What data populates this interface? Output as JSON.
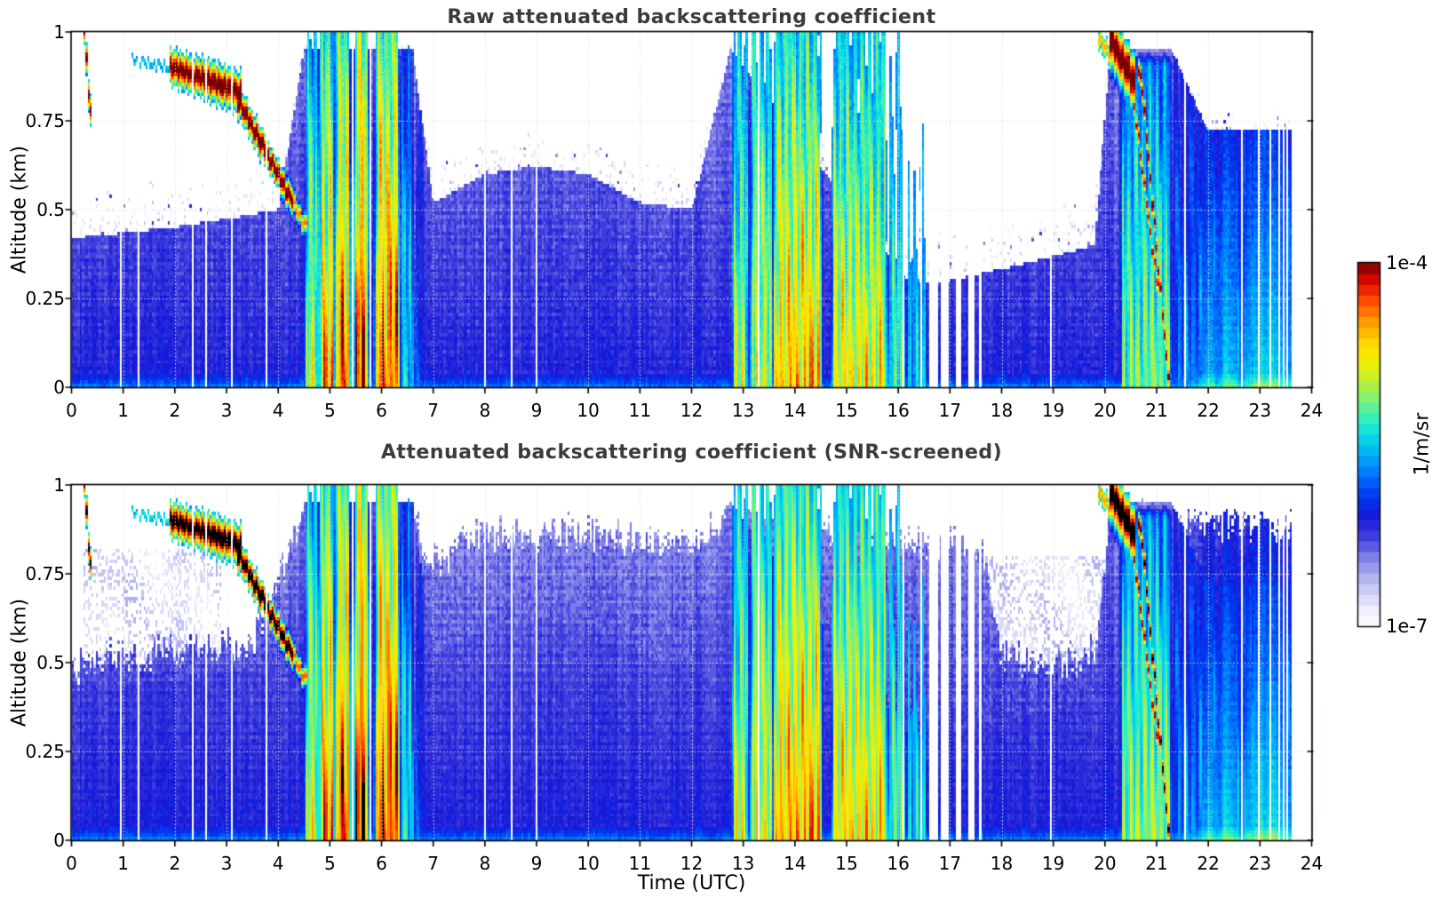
{
  "chart_data": {
    "type": "heatmap",
    "panels": [
      {
        "id": "raw",
        "title": "Raw attenuated backscattering coefficient",
        "screened": false
      },
      {
        "id": "screened",
        "title": "Attenuated backscattering coefficient (SNR-screened)",
        "screened": true
      }
    ],
    "x": {
      "label": "Time (UTC)",
      "range": [
        0,
        24
      ],
      "ticks": [
        0,
        1,
        2,
        3,
        4,
        5,
        6,
        7,
        8,
        9,
        10,
        11,
        12,
        13,
        14,
        15,
        16,
        17,
        18,
        19,
        20,
        21,
        22,
        23,
        24
      ],
      "tick_labels": [
        "0",
        "1",
        "2",
        "3",
        "4",
        "5",
        "6",
        "7",
        "8",
        "9",
        "10",
        "11",
        "12",
        "13",
        "14",
        "15",
        "16",
        "17",
        "18",
        "19",
        "20",
        "21",
        "22",
        "23",
        "24"
      ]
    },
    "y": {
      "label": "Altitude (km)",
      "range": [
        0,
        1
      ],
      "ticks": [
        1,
        0.75,
        0.5,
        0.25,
        0
      ],
      "tick_labels": [
        "1",
        "0.75",
        "0.5",
        "0.25",
        "0"
      ]
    },
    "colorbar": {
      "label": "1/m/sr",
      "max_label": "1e-4",
      "min_label": "1e-7",
      "min": 1e-07,
      "max": 0.0001,
      "scale": "log",
      "steps": 34,
      "stops": [
        [
          0.0,
          "#ffffff"
        ],
        [
          0.04,
          "#f0f0fd"
        ],
        [
          0.09,
          "#d4d4f8"
        ],
        [
          0.14,
          "#aeaef0"
        ],
        [
          0.19,
          "#8080e8"
        ],
        [
          0.24,
          "#4444dd"
        ],
        [
          0.3,
          "#1818d8"
        ],
        [
          0.36,
          "#0038f0"
        ],
        [
          0.43,
          "#0080ff"
        ],
        [
          0.5,
          "#00c8f0"
        ],
        [
          0.56,
          "#20f0d0"
        ],
        [
          0.62,
          "#78f080"
        ],
        [
          0.68,
          "#c0f030"
        ],
        [
          0.73,
          "#f0f000"
        ],
        [
          0.78,
          "#ffd800"
        ],
        [
          0.84,
          "#ff9800"
        ],
        [
          0.9,
          "#ff4800"
        ],
        [
          0.95,
          "#e00800"
        ],
        [
          1.0,
          "#780000"
        ]
      ]
    },
    "grid_color": "#e0e0e0",
    "data_end_utc": 23.62,
    "gap_lines_utc": [
      0.95,
      1.3,
      2.35,
      2.6,
      3.1,
      3.78,
      5.44,
      5.78,
      8.0,
      8.52,
      9.0,
      13.3,
      16.1,
      16.45,
      18.95,
      21.55,
      22.65,
      22.97,
      23.2,
      23.37,
      23.45,
      23.52
    ],
    "gap_intervals_utc": [
      [
        16.6,
        16.78
      ],
      [
        16.82,
        16.97
      ],
      [
        17.12,
        17.22
      ],
      [
        17.35,
        17.47
      ],
      [
        17.57,
        17.63
      ]
    ],
    "rain_events": [
      {
        "start": 4.52,
        "end": 4.8,
        "strength": 0.8,
        "top": 1.0
      },
      {
        "start": 4.8,
        "end": 5.1,
        "strength": 0.95,
        "top": 1.0
      },
      {
        "start": 5.1,
        "end": 5.4,
        "strength": 1.0,
        "top": 1.0
      },
      {
        "start": 5.48,
        "end": 5.74,
        "strength": 1.08,
        "top": 1.0
      },
      {
        "start": 5.88,
        "end": 6.34,
        "strength": 1.02,
        "top": 1.0
      },
      {
        "start": 6.36,
        "end": 6.62,
        "strength": 0.62,
        "top": 1.0
      },
      {
        "start": 6.64,
        "end": 6.82,
        "strength": 0.45,
        "top": 0.9
      },
      {
        "start": 12.78,
        "end": 13.1,
        "strength": 0.78,
        "top": 1.0
      },
      {
        "start": 13.14,
        "end": 13.56,
        "strength": 0.82,
        "top": 1.0
      },
      {
        "start": 13.58,
        "end": 14.52,
        "strength": 0.92,
        "top": 1.0
      },
      {
        "start": 14.72,
        "end": 15.78,
        "strength": 0.85,
        "top": 1.0
      },
      {
        "start": 15.8,
        "end": 16.15,
        "strength": 0.68,
        "top": 1.0
      },
      {
        "start": 16.15,
        "end": 16.55,
        "strength": 0.58,
        "top": 1.0
      },
      {
        "start": 20.3,
        "end": 21.28,
        "strength": 0.72,
        "top": 0.9
      },
      {
        "start": 21.3,
        "end": 23.62,
        "strength": 0.5,
        "top": 1.0
      }
    ],
    "cloud_tracks": [
      {
        "t0": 0.27,
        "a0": 1.0,
        "t1": 0.34,
        "a1": 0.78,
        "th": 0.05,
        "s": 1.08
      },
      {
        "t0": 1.2,
        "a0": 0.92,
        "t1": 1.95,
        "a1": 0.9,
        "th": 0.025,
        "s": 0.55
      },
      {
        "t0": 1.95,
        "a0": 0.9,
        "t1": 2.55,
        "a1": 0.87,
        "th": 0.06,
        "s": 1.1
      },
      {
        "t0": 2.55,
        "a0": 0.87,
        "t1": 3.25,
        "a1": 0.83,
        "th": 0.065,
        "s": 1.12
      },
      {
        "t0": 3.25,
        "a0": 0.8,
        "t1": 3.7,
        "a1": 0.68,
        "th": 0.05,
        "s": 1.12
      },
      {
        "t0": 3.7,
        "a0": 0.68,
        "t1": 4.25,
        "a1": 0.53,
        "th": 0.045,
        "s": 1.12
      },
      {
        "t0": 4.25,
        "a0": 0.53,
        "t1": 4.5,
        "a1": 0.46,
        "th": 0.035,
        "s": 0.9
      },
      {
        "t0": 19.9,
        "a0": 0.98,
        "t1": 20.12,
        "a1": 0.93,
        "th": 0.04,
        "s": 0.85
      },
      {
        "t0": 20.15,
        "a0": 0.97,
        "t1": 20.55,
        "a1": 0.86,
        "th": 0.09,
        "s": 1.12
      },
      {
        "t0": 20.45,
        "a0": 0.93,
        "t1": 21.0,
        "a1": 0.3,
        "th": 0.035,
        "s": 1.0
      },
      {
        "t0": 20.7,
        "a0": 0.88,
        "t1": 21.22,
        "a1": 0.04,
        "th": 0.04,
        "s": 1.05
      }
    ],
    "noise_ceiling": [
      [
        0,
        0.42
      ],
      [
        2,
        0.45
      ],
      [
        4,
        0.5
      ],
      [
        4.5,
        0.95
      ],
      [
        6.6,
        0.95
      ],
      [
        7,
        0.52
      ],
      [
        8,
        0.6
      ],
      [
        9,
        0.62
      ],
      [
        10,
        0.6
      ],
      [
        11,
        0.52
      ],
      [
        12,
        0.5
      ],
      [
        12.75,
        0.95
      ],
      [
        16.2,
        0.3
      ],
      [
        17,
        0.3
      ],
      [
        17.6,
        0.32
      ],
      [
        18.5,
        0.35
      ],
      [
        19.8,
        0.4
      ],
      [
        20.1,
        0.95
      ],
      [
        21.3,
        0.95
      ],
      [
        22,
        0.72
      ],
      [
        23.6,
        0.72
      ]
    ],
    "retain_ceiling": [
      [
        0,
        0.55
      ],
      [
        1,
        0.58
      ],
      [
        2,
        0.6
      ],
      [
        3.5,
        0.62
      ],
      [
        4.5,
        0.97
      ],
      [
        6.6,
        0.97
      ],
      [
        7,
        0.85
      ],
      [
        8,
        0.92
      ],
      [
        10,
        0.93
      ],
      [
        12,
        0.9
      ],
      [
        12.7,
        0.97
      ],
      [
        16.2,
        0.9
      ],
      [
        17.6,
        0.9
      ],
      [
        18,
        0.6
      ],
      [
        19,
        0.55
      ],
      [
        19.8,
        0.6
      ],
      [
        20.1,
        0.97
      ],
      [
        21.3,
        0.97
      ],
      [
        22,
        0.95
      ],
      [
        23.6,
        0.95
      ]
    ],
    "haze_regions": [
      {
        "t0": 0.25,
        "t1": 2.9,
        "a0": 0.38,
        "a1": 0.82
      },
      {
        "t0": 17.35,
        "t1": 20.1,
        "a0": 0.22,
        "a1": 0.8
      }
    ]
  }
}
